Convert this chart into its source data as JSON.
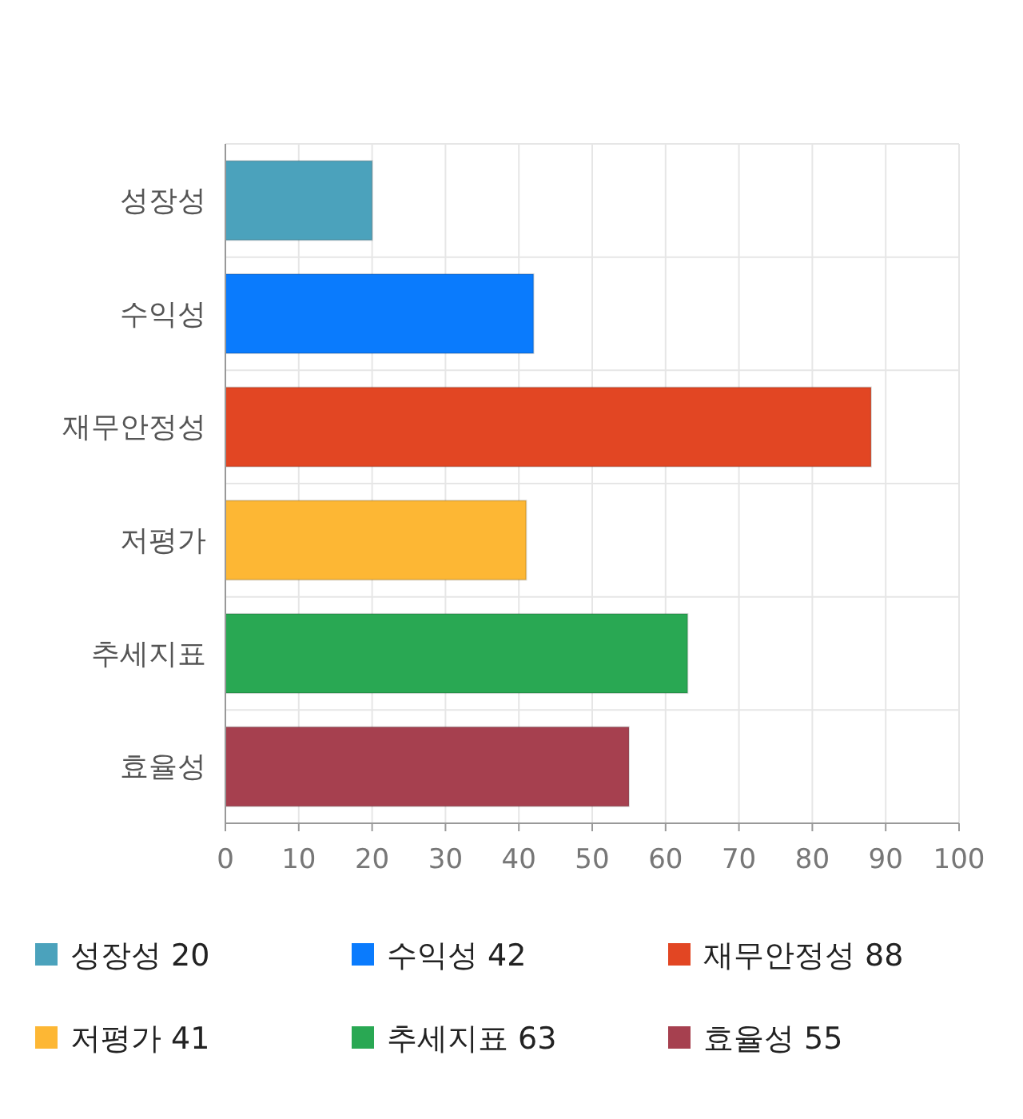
{
  "chart_data": {
    "type": "bar",
    "orientation": "horizontal",
    "categories": [
      "성장성",
      "수익성",
      "재무안정성",
      "저평가",
      "추세지표",
      "효율성"
    ],
    "series": [
      {
        "name": "성장성 20",
        "color": "#4ba2bc",
        "values": [
          20,
          null,
          null,
          null,
          null,
          null
        ]
      },
      {
        "name": "수익성 42",
        "color": "#0a7bfd",
        "values": [
          null,
          42,
          null,
          null,
          null,
          null
        ]
      },
      {
        "name": "재무안정성 88",
        "color": "#e24623",
        "values": [
          null,
          null,
          88,
          null,
          null,
          null
        ]
      },
      {
        "name": "저평가 41",
        "color": "#fdb734",
        "values": [
          null,
          null,
          null,
          41,
          null,
          null
        ]
      },
      {
        "name": "추세지표 63",
        "color": "#29a853",
        "values": [
          null,
          null,
          null,
          null,
          63,
          null
        ]
      },
      {
        "name": "효율성 55",
        "color": "#a6404f",
        "values": [
          null,
          null,
          null,
          null,
          null,
          55
        ]
      }
    ],
    "stacked": true,
    "xlim": [
      0,
      100
    ],
    "xticks": [
      0,
      10,
      20,
      30,
      40,
      50,
      60,
      70,
      80,
      90,
      100
    ],
    "grid": true,
    "legend": "bottom"
  }
}
